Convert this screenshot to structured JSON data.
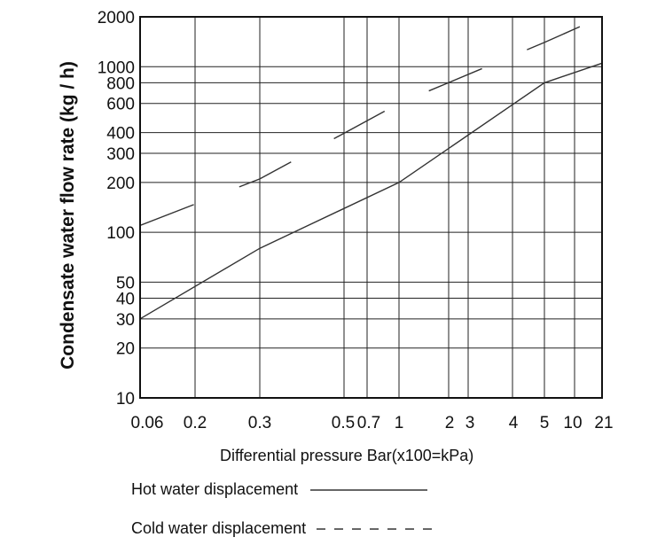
{
  "chart_data": {
    "type": "line",
    "title": "",
    "xlabel": "Differential pressure Bar(x100=kPa)",
    "ylabel": "Condensate water flow rate (kg / h)",
    "x_scale": "categorical-log-like",
    "y_scale": "log",
    "ylim": [
      10,
      2000
    ],
    "grid": true,
    "legend_position": "bottom",
    "x_ticks": [
      "0.06",
      "0.2",
      "0.3",
      "0.5",
      "0.7",
      "1",
      "2",
      "3",
      "4",
      "5",
      "10",
      "21"
    ],
    "y_ticks": [
      "10",
      "20",
      "30",
      "40",
      "50",
      "100",
      "200",
      "300",
      "400",
      "600",
      "800",
      "1000",
      "2000"
    ],
    "series": [
      {
        "name": "Hot water displacement",
        "style": "solid",
        "x": [
          "0.06",
          "0.3",
          "1",
          "5",
          "21"
        ],
        "y": [
          30,
          80,
          200,
          800,
          1050
        ]
      },
      {
        "name": "Cold water displacement",
        "style": "dashed",
        "x": [
          "0.06",
          "0.3",
          "1",
          "5",
          "21"
        ],
        "y": [
          110,
          210,
          600,
          1400,
          2000
        ]
      }
    ]
  },
  "legend": {
    "hot_label": "Hot water displacement",
    "cold_label": "Cold water displacement"
  },
  "colors": {
    "line": "#333333",
    "grid": "#222222",
    "frame": "#111111"
  }
}
